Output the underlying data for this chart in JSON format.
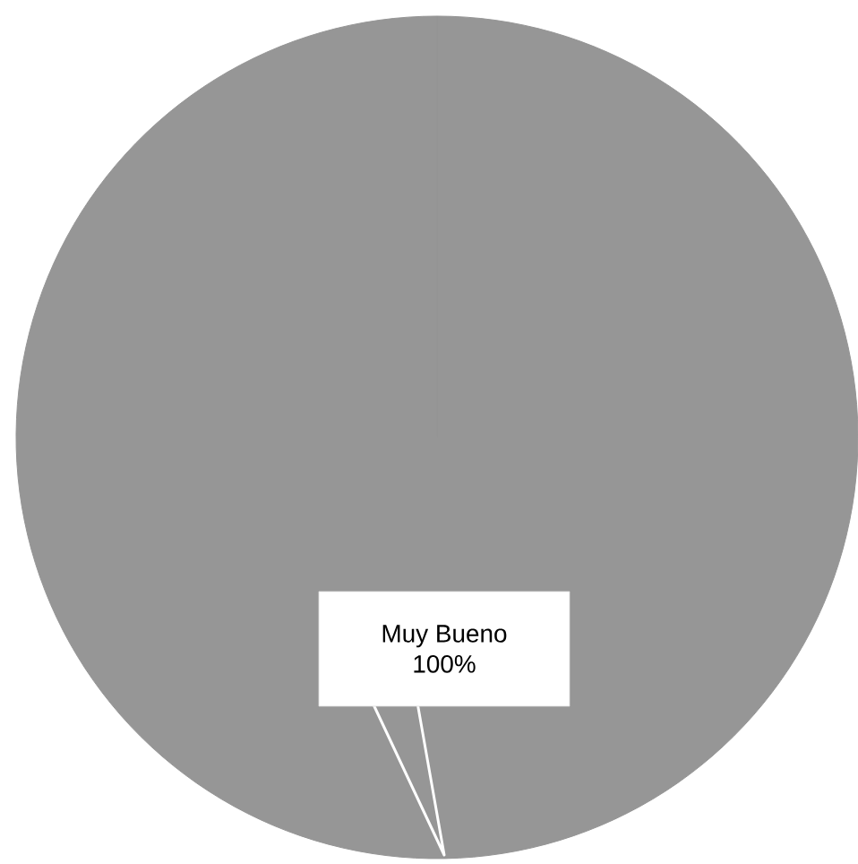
{
  "chart_data": {
    "type": "pie",
    "categories": [
      "Muy Bueno"
    ],
    "values": [
      100
    ],
    "colors": [
      "#969696"
    ],
    "value_labels": [
      "100%"
    ]
  }
}
